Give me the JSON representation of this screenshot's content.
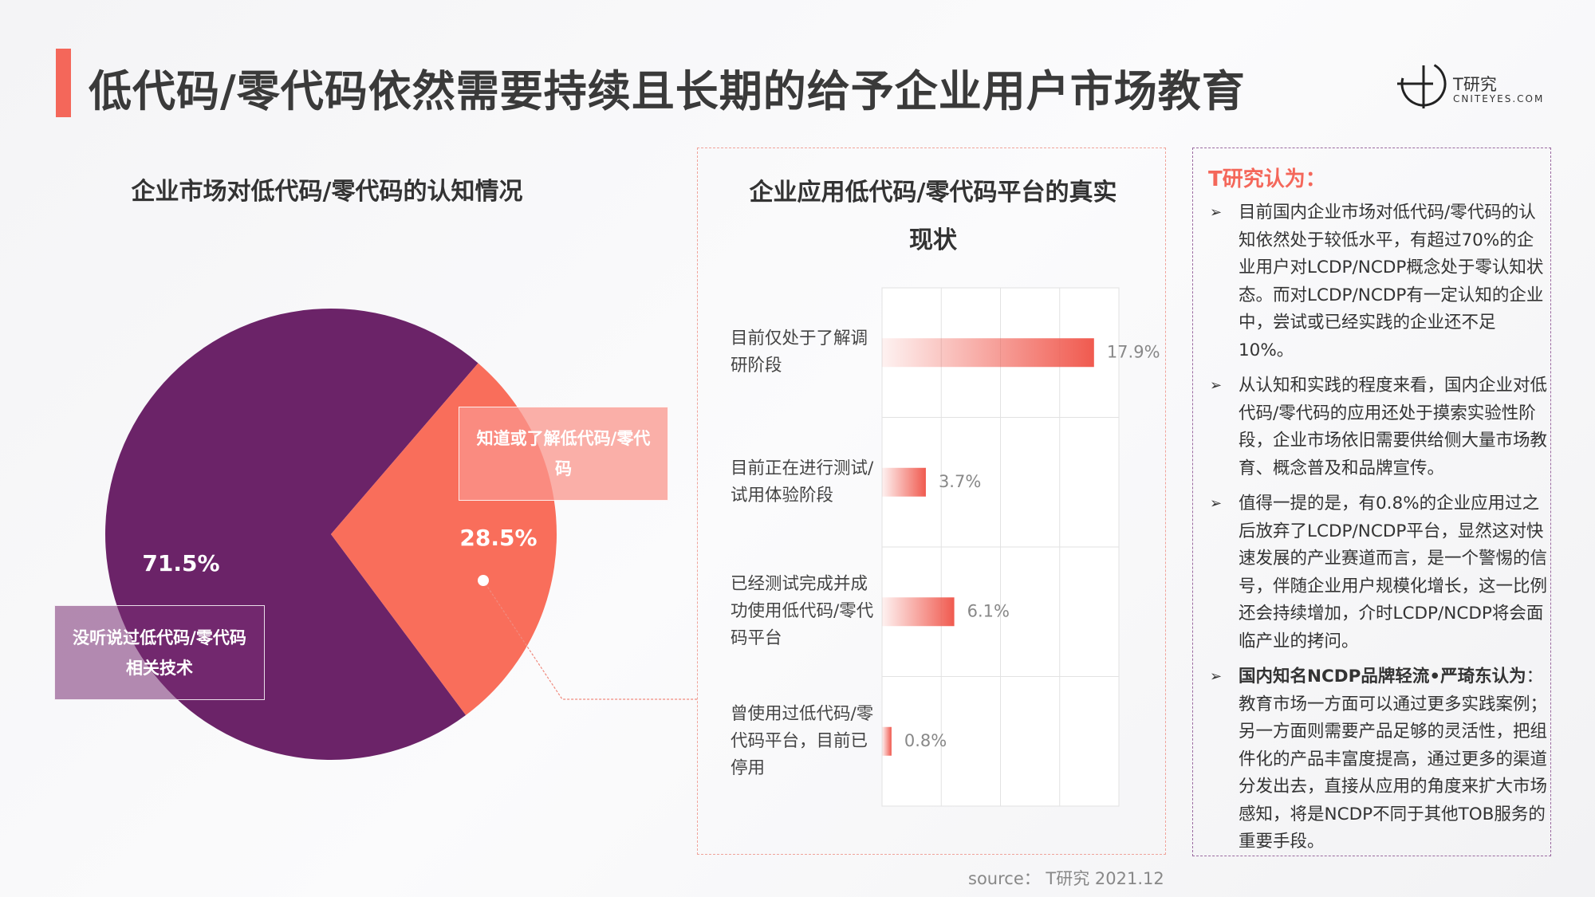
{
  "title": "低代码/零代码依然需要持续且长期的给予企业用户市场教育",
  "logo": {
    "name": "T研究",
    "site": "CNITEYES.COM"
  },
  "chart_data": [
    {
      "type": "pie",
      "title": "企业市场对低代码/零代码的认知情况",
      "categories": [
        "没听说过低代码/零代码相关技术",
        "知道或了解低代码/零代码"
      ],
      "values": [
        71.5,
        28.5
      ],
      "value_labels": [
        "71.5%",
        "28.5%"
      ],
      "colors": [
        "#6b2368",
        "#f96e5b"
      ]
    },
    {
      "type": "bar",
      "title": "企业应用低代码/零代码平台的真实现状",
      "categories": [
        "目前仅处于了解调研阶段",
        "目前正在进行测试/试用体验阶段",
        "已经测试完成并成功使用低代码/零代码平台",
        "曾使用过低代码/零代码平台，目前已停用"
      ],
      "values": [
        17.9,
        3.7,
        6.1,
        0.8
      ],
      "value_labels": [
        "17.9%",
        "3.7%",
        "6.1%",
        "0.8%"
      ],
      "color": "#f05a4f",
      "xlim": [
        0,
        20
      ],
      "xticks": [
        0,
        5,
        10,
        15,
        20
      ],
      "grid": true
    }
  ],
  "insight": {
    "heading": "T研究认为：",
    "points": [
      {
        "text": "目前国内企业市场对低代码/零代码的认知依然处于较低水平，有超过70%的企业用户对LCDP/NCDP概念处于零认知状态。而对LCDP/NCDP有一定认知的企业中，尝试或已经实践的企业还不足10%。"
      },
      {
        "text": "从认知和实践的程度来看，国内企业对低代码/零代码的应用还处于摸索实验性阶段，企业市场依旧需要供给侧大量市场教育、概念普及和品牌宣传。"
      },
      {
        "text": "值得一提的是，有0.8%的企业应用过之后放弃了LCDP/NCDP平台，显然这对快速发展的产业赛道而言，是一个警惕的信号，伴随企业用户规模化增长，这一比例还会持续增加，介时LCDP/NCDP将会面临产业的拷问。"
      },
      {
        "lead": "国内知名NCDP品牌轻流•严琦东认为",
        "text": "：教育市场一方面可以通过更多实践案例；另一方面则需要产品足够的灵活性，把组件化的产品丰富度提高，通过更多的渠道分发出去，直接从应用的角度来扩大市场感知，将是NCDP不同于其他TOB服务的重要手段。"
      }
    ]
  },
  "source": "source： T研究 2021.12"
}
